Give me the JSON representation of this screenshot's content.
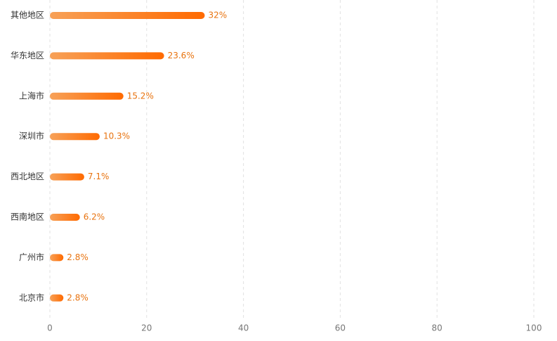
{
  "chart_data": {
    "type": "bar",
    "orientation": "horizontal",
    "categories": [
      "其他地区",
      "华东地区",
      "上海市",
      "深圳市",
      "西北地区",
      "西南地区",
      "广州市",
      "北京市"
    ],
    "values": [
      32,
      23.6,
      15.2,
      10.3,
      7.1,
      6.2,
      2.8,
      2.8
    ],
    "value_labels": [
      "32%",
      "23.6%",
      "15.2%",
      "10.3%",
      "7.1%",
      "6.2%",
      "2.8%",
      "2.8%"
    ],
    "color": [
      "#f7a158",
      "#ff6a00"
    ],
    "xlim": [
      0,
      100
    ],
    "xticks": [
      0,
      20,
      40,
      60,
      80,
      100
    ],
    "grid": true
  }
}
